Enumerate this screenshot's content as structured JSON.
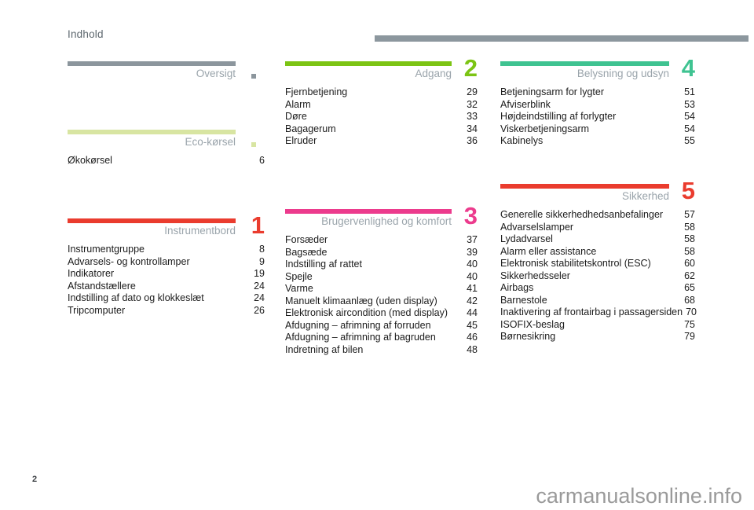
{
  "page": {
    "header": "Indhold",
    "page_number": "2",
    "watermark": "carmanualsonline.info"
  },
  "colors": {
    "rule_gray": "#8c979e",
    "eco_green": "#d8e5a2",
    "red": "#ea3c2e",
    "green": "#7cc414",
    "pink": "#ec3b8d",
    "teal": "#3fc391",
    "label_gray": "#9aa4ab"
  },
  "sections": [
    {
      "id": "oversigt",
      "label": "Oversigt",
      "marker": "square",
      "color": "#8c969d",
      "items": []
    },
    {
      "id": "eco-korsel",
      "label": "Eco-kørsel",
      "marker": "square",
      "color": "#d8e5a2",
      "items": [
        {
          "title": "Økokørsel",
          "page": "6"
        }
      ]
    },
    {
      "id": "instrumentbord",
      "label": "Instrumentbord",
      "number": "1",
      "color": "#ea3c2e",
      "items": [
        {
          "title": "Instrumentgruppe",
          "page": "8"
        },
        {
          "title": "Advarsels- og kontrollamper",
          "page": "9"
        },
        {
          "title": "Indikatorer",
          "page": "19"
        },
        {
          "title": "Afstandstællere",
          "page": "24"
        },
        {
          "title": "Indstilling af dato og klokkeslæt",
          "page": "24"
        },
        {
          "title": "Tripcomputer",
          "page": "26"
        }
      ]
    },
    {
      "id": "adgang",
      "label": "Adgang",
      "number": "2",
      "color": "#7cc414",
      "items": [
        {
          "title": "Fjernbetjening",
          "page": "29"
        },
        {
          "title": "Alarm",
          "page": "32"
        },
        {
          "title": "Døre",
          "page": "33"
        },
        {
          "title": "Bagagerum",
          "page": "34"
        },
        {
          "title": "Elruder",
          "page": "36"
        }
      ]
    },
    {
      "id": "brugervenlighed-og-komfort",
      "label": "Brugervenlighed og komfort",
      "number": "3",
      "color": "#ec3b8d",
      "items": [
        {
          "title": "Forsæder",
          "page": "37"
        },
        {
          "title": "Bagsæde",
          "page": "39"
        },
        {
          "title": "Indstilling af rattet",
          "page": "40"
        },
        {
          "title": "Spejle",
          "page": "40"
        },
        {
          "title": "Varme",
          "page": "41"
        },
        {
          "title": "Manuelt klimaanlæg (uden display)",
          "page": "42"
        },
        {
          "title": "Elektronisk aircondition (med display)",
          "page": "44"
        },
        {
          "title": "Afdugning – afrimning af forruden",
          "page": "45"
        },
        {
          "title": "Afdugning – afrimning af bagruden",
          "page": "46"
        },
        {
          "title": "Indretning af bilen",
          "page": "48"
        }
      ]
    },
    {
      "id": "belysning-og-udsyn",
      "label": "Belysning og udsyn",
      "number": "4",
      "color": "#3fc391",
      "items": [
        {
          "title": "Betjeningsarm for lygter",
          "page": "51"
        },
        {
          "title": "Afviserblink",
          "page": "53"
        },
        {
          "title": "Højdeindstilling af forlygter",
          "page": "54"
        },
        {
          "title": "Viskerbetjeningsarm",
          "page": "54"
        },
        {
          "title": "Kabinelys",
          "page": "55"
        }
      ]
    },
    {
      "id": "sikkerhed",
      "label": "Sikkerhed",
      "number": "5",
      "color": "#ea3c2e",
      "items": [
        {
          "title": "Generelle sikkerhedhedsanbefalinger",
          "page": "57"
        },
        {
          "title": "Advarselslamper",
          "page": "58"
        },
        {
          "title": "Lydadvarsel",
          "page": "58"
        },
        {
          "title": "Alarm eller assistance",
          "page": "58"
        },
        {
          "title": "Elektronisk stabilitetskontrol (ESC)",
          "page": "60"
        },
        {
          "title": "Sikkerhedsseler",
          "page": "62"
        },
        {
          "title": "Airbags",
          "page": "65"
        },
        {
          "title": "Barnestole",
          "page": "68"
        },
        {
          "title": "Inaktivering af frontairbag i passagersiden",
          "page": "70"
        },
        {
          "title": "ISOFIX-beslag",
          "page": "75"
        },
        {
          "title": "Børnesikring",
          "page": "79"
        }
      ]
    }
  ]
}
